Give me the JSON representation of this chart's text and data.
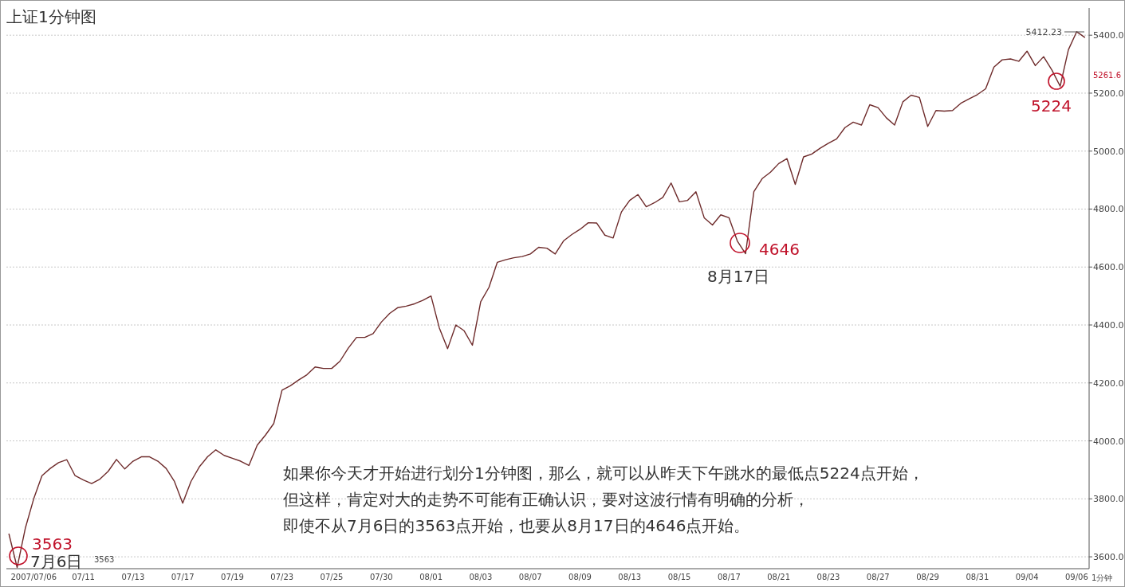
{
  "chart_data": {
    "type": "line",
    "title": "上证1分钟图",
    "categories": [
      null,
      null,
      null,
      "2007/07/06",
      null,
      null,
      null,
      null,
      null,
      "07/11",
      null,
      null,
      null,
      null,
      null,
      "07/13",
      null,
      null,
      null,
      null,
      null,
      "07/17",
      null,
      null,
      null,
      null,
      null,
      "07/19",
      null,
      null,
      null,
      null,
      null,
      "07/23",
      null,
      null,
      null,
      null,
      null,
      "07/25",
      null,
      null,
      null,
      null,
      null,
      "07/30",
      null,
      null,
      null,
      null,
      null,
      "08/01",
      null,
      null,
      null,
      null,
      null,
      "08/03",
      null,
      null,
      null,
      null,
      null,
      "08/07",
      null,
      null,
      null,
      null,
      null,
      "08/09",
      null,
      null,
      null,
      null,
      null,
      "08/13",
      null,
      null,
      null,
      null,
      null,
      "08/15",
      null,
      null,
      null,
      null,
      null,
      "08/17",
      null,
      null,
      null,
      null,
      null,
      "08/21",
      null,
      null,
      null,
      null,
      null,
      "08/23",
      null,
      null,
      null,
      null,
      null,
      "08/27",
      null,
      null,
      null,
      null,
      null,
      "08/29",
      null,
      null,
      null,
      null,
      null,
      "08/31",
      null,
      null,
      null,
      null,
      null,
      "09/04",
      null,
      null,
      null,
      null,
      null,
      "09/06",
      null
    ],
    "series": [
      {
        "color": "#6e2b2b",
        "values": [
          3680,
          3563,
          3700,
          3800,
          3880,
          3905,
          3925,
          3935,
          3880,
          3865,
          3853,
          3868,
          3895,
          3936,
          3903,
          3930,
          3945,
          3945,
          3930,
          3905,
          3860,
          3785,
          3860,
          3910,
          3945,
          3969,
          3950,
          3940,
          3930,
          3915,
          3985,
          4020,
          4060,
          4175,
          4190,
          4210,
          4228,
          4255,
          4250,
          4250,
          4275,
          4320,
          4357,
          4357,
          4370,
          4410,
          4440,
          4460,
          4465,
          4473,
          4485,
          4500,
          4390,
          4318,
          4400,
          4380,
          4330,
          4480,
          4530,
          4616,
          4625,
          4632,
          4636,
          4645,
          4668,
          4665,
          4645,
          4690,
          4712,
          4730,
          4753,
          4752,
          4710,
          4700,
          4790,
          4830,
          4850,
          4808,
          4822,
          4840,
          4890,
          4825,
          4830,
          4860,
          4770,
          4745,
          4780,
          4770,
          4690,
          4646,
          4860,
          4905,
          4927,
          4957,
          4974,
          4885,
          4980,
          4990,
          5010,
          5027,
          5042,
          5081,
          5100,
          5090,
          5160,
          5150,
          5115,
          5090,
          5170,
          5193,
          5185,
          5085,
          5140,
          5138,
          5140,
          5165,
          5180,
          5195,
          5215,
          5290,
          5315,
          5318,
          5310,
          5345,
          5295,
          5326,
          5280,
          5224,
          5350,
          5412,
          5392
        ]
      }
    ],
    "ylim": [
      3559,
      5494
    ],
    "yticks": [
      {
        "value": 3600,
        "label": "3600.0"
      },
      {
        "value": 3800,
        "label": "3800.0"
      },
      {
        "value": 4000,
        "label": "4000.0"
      },
      {
        "value": 4200,
        "label": "4200.0"
      },
      {
        "value": 4400,
        "label": "4400.0"
      },
      {
        "value": 4600,
        "label": "4600.0"
      },
      {
        "value": 4800,
        "label": "4800.0"
      },
      {
        "value": 5000,
        "label": "5000.0"
      },
      {
        "value": 5200,
        "label": "5200.0"
      },
      {
        "value": 5400,
        "label": "5400.0"
      }
    ],
    "grid": "y",
    "annotations": [
      "3563",
      "7月6日",
      "4646",
      "8月17日",
      "5224",
      "5412.23",
      "3563",
      "5261.6",
      "如果你今天才开始进行划分1分钟图，那么，就可以从昨天下午跳水的最低点5224点开始，",
      "但这样，肯定对大的走势不可能有正确认识，要对这波行情有明确的分析，",
      "即使不从7月6日的3563点开始，也要从8月17日的4646点开始。",
      "1分钟"
    ]
  }
}
